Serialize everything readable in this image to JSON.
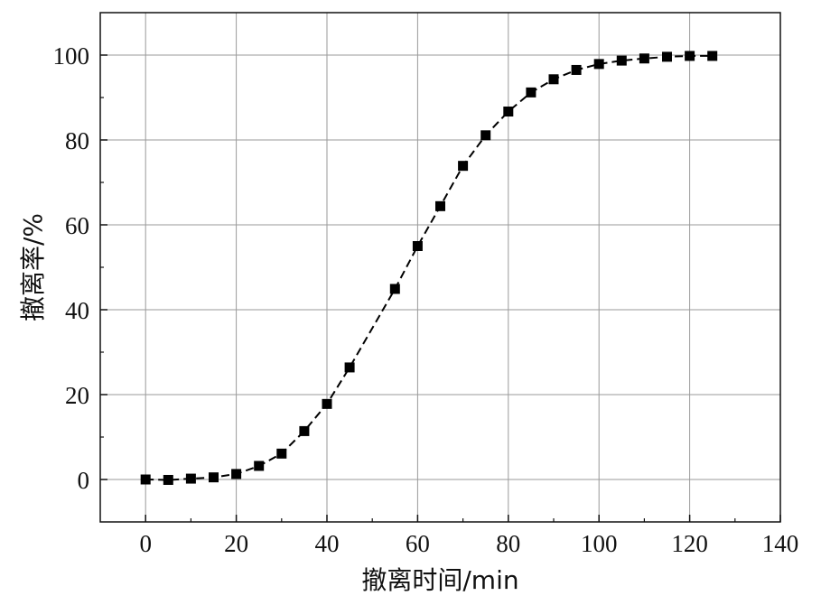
{
  "chart_data": {
    "type": "line",
    "xlabel": "撤离时间/min",
    "ylabel": "撤离率/%",
    "xlim": [
      -10,
      140
    ],
    "ylim": [
      -10,
      110
    ],
    "xticks": [
      0,
      20,
      40,
      60,
      80,
      100,
      120,
      140
    ],
    "yticks": [
      0,
      20,
      40,
      60,
      80,
      100
    ],
    "grid": true,
    "series": [
      {
        "marker": "square",
        "line_style": "dashed",
        "color": "#000000",
        "x": [
          0,
          5,
          10,
          15,
          20,
          25,
          30,
          35,
          40,
          45,
          50,
          55,
          60,
          65,
          70,
          75,
          80,
          85,
          90,
          95,
          100,
          105,
          110,
          115,
          120,
          125
        ],
        "y": [
          0,
          -0.1,
          0.2,
          0.5,
          1.3,
          3.2,
          6.1,
          11.4,
          17.8,
          26.4,
          null,
          44.9,
          55.0,
          64.4,
          73.9,
          81.1,
          86.7,
          91.2,
          94.3,
          96.5,
          97.9,
          98.7,
          99.2,
          99.6,
          99.8,
          99.8
        ]
      }
    ]
  }
}
